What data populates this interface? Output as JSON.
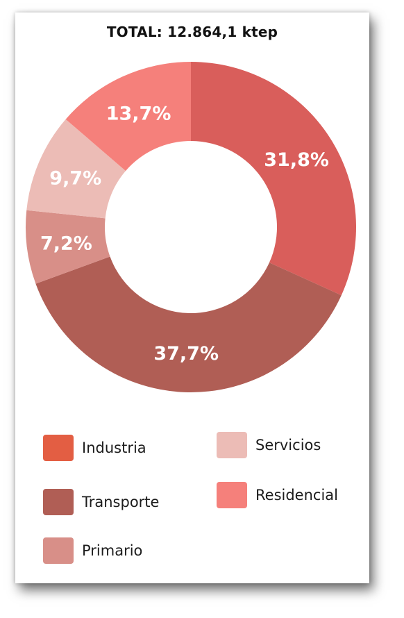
{
  "chart_data": {
    "type": "pie",
    "title": "TOTAL: 12.864,1 ktep",
    "categories": [
      "Industria",
      "Transporte",
      "Primario",
      "Servicios",
      "Residencial"
    ],
    "values": [
      31.8,
      37.7,
      7.2,
      9.7,
      13.7
    ],
    "labels": [
      "31,8%",
      "37,7%",
      "7,2%",
      "9,7%",
      "13,7%"
    ],
    "slice_colors": [
      "#d95e5b",
      "#b05e55",
      "#d88f88",
      "#ecbcb6",
      "#f5807b"
    ],
    "legend_colors": [
      "#e35e43",
      "#b05e55",
      "#d88f88",
      "#ecbcb6",
      "#f5807b"
    ],
    "legend": [
      "Industria",
      "Transporte",
      "Primario",
      "Servicios",
      "Residencial"
    ]
  }
}
